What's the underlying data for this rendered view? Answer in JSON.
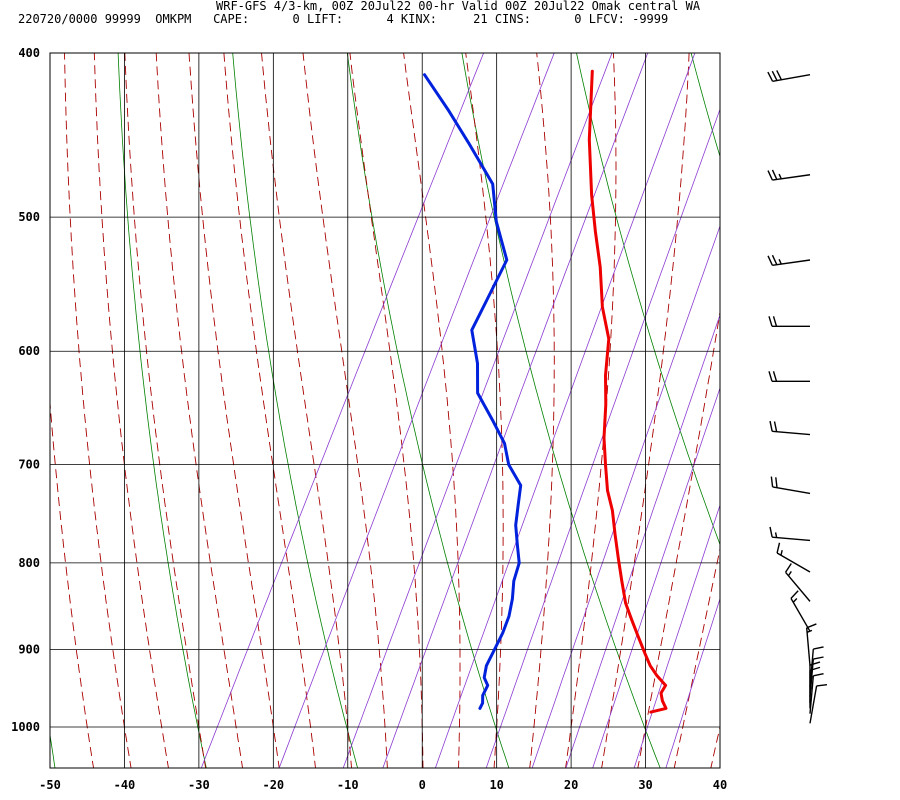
{
  "header": {
    "line1": "WRF-GFS 4/3-km, 00Z 20Jul22 00-hr Valid 00Z 20Jul22 Omak central WA",
    "line2": "220720/0000 99999  OMKPM   CAPE:      0 LIFT:      4 KINX:     21 CINS:      0 LFCV: -9999"
  },
  "chart_data": {
    "type": "skew-t",
    "x_ticks": [
      -50,
      -40,
      -30,
      -20,
      -10,
      0,
      10,
      20,
      30,
      40
    ],
    "y_ticks": [
      400,
      500,
      600,
      700,
      800,
      900,
      1000
    ],
    "xlim": [
      -50,
      40
    ],
    "ylim": [
      400,
      1050
    ],
    "y_scale": "log-pressure",
    "grid": true,
    "colors": {
      "temperature": "#ee0000",
      "dewpoint": "#0022dd",
      "dry_adiabat": "#008000",
      "moist_adiabat": "#aa0000",
      "mixing_ratio": "#8c3cd2",
      "grid": "#000000"
    },
    "series": [
      {
        "id": "temperature",
        "points": [
          [
            -21.2,
            410
          ],
          [
            -17,
            450
          ],
          [
            -13,
            485
          ],
          [
            -10,
            510
          ],
          [
            -7,
            535
          ],
          [
            -4,
            565
          ],
          [
            -1,
            590
          ],
          [
            1,
            620
          ],
          [
            3,
            645
          ],
          [
            5,
            675
          ],
          [
            7,
            700
          ],
          [
            9,
            725
          ],
          [
            11,
            745
          ],
          [
            13,
            770
          ],
          [
            15,
            795
          ],
          [
            17,
            820
          ],
          [
            19,
            845
          ],
          [
            21,
            865
          ],
          [
            23,
            885
          ],
          [
            25,
            905
          ],
          [
            26.5,
            920
          ],
          [
            28,
            932
          ],
          [
            29.9,
            945
          ],
          [
            29.8,
            955
          ],
          [
            30.5,
            965
          ],
          [
            31.5,
            975
          ],
          [
            29.7,
            980
          ]
        ]
      },
      {
        "id": "dewpoint",
        "points": [
          [
            -43.5,
            412
          ],
          [
            -38,
            432
          ],
          [
            -33,
            452
          ],
          [
            -27,
            478
          ],
          [
            -24,
            503
          ],
          [
            -20,
            530
          ],
          [
            -20,
            560
          ],
          [
            -20,
            583
          ],
          [
            -17,
            610
          ],
          [
            -15,
            635
          ],
          [
            -11,
            660
          ],
          [
            -8,
            680
          ],
          [
            -6,
            700
          ],
          [
            -3,
            720
          ],
          [
            -2,
            740
          ],
          [
            -1,
            760
          ],
          [
            0.5,
            780
          ],
          [
            2,
            800
          ],
          [
            2.5,
            820
          ],
          [
            3.5,
            840
          ],
          [
            4.2,
            860
          ],
          [
            4.5,
            880
          ],
          [
            4.5,
            900
          ],
          [
            4.5,
            920
          ],
          [
            5,
            935
          ],
          [
            6,
            945
          ],
          [
            6,
            958
          ],
          [
            6.5,
            968
          ],
          [
            6.5,
            975
          ]
        ]
      }
    ],
    "wind_barbs": [
      {
        "p": 412,
        "dir": 260,
        "speed": 30
      },
      {
        "p": 472,
        "dir": 262,
        "speed": 25
      },
      {
        "p": 530,
        "dir": 262,
        "speed": 25
      },
      {
        "p": 580,
        "dir": 270,
        "speed": 20
      },
      {
        "p": 625,
        "dir": 270,
        "speed": 20
      },
      {
        "p": 672,
        "dir": 275,
        "speed": 20
      },
      {
        "p": 728,
        "dir": 280,
        "speed": 20
      },
      {
        "p": 776,
        "dir": 275,
        "speed": 15
      },
      {
        "p": 810,
        "dir": 300,
        "speed": 15
      },
      {
        "p": 843,
        "dir": 320,
        "speed": 15
      },
      {
        "p": 878,
        "dir": 330,
        "speed": 15
      },
      {
        "p": 920,
        "dir": 355,
        "speed": 15
      },
      {
        "p": 947,
        "dir": 5,
        "speed": 10
      },
      {
        "p": 960,
        "dir": 5,
        "speed": 10
      },
      {
        "p": 968,
        "dir": 0,
        "speed": 10
      },
      {
        "p": 975,
        "dir": 0,
        "speed": 10
      },
      {
        "p": 982,
        "dir": 5,
        "speed": 10
      },
      {
        "p": 995,
        "dir": 10,
        "speed": 10
      }
    ]
  }
}
